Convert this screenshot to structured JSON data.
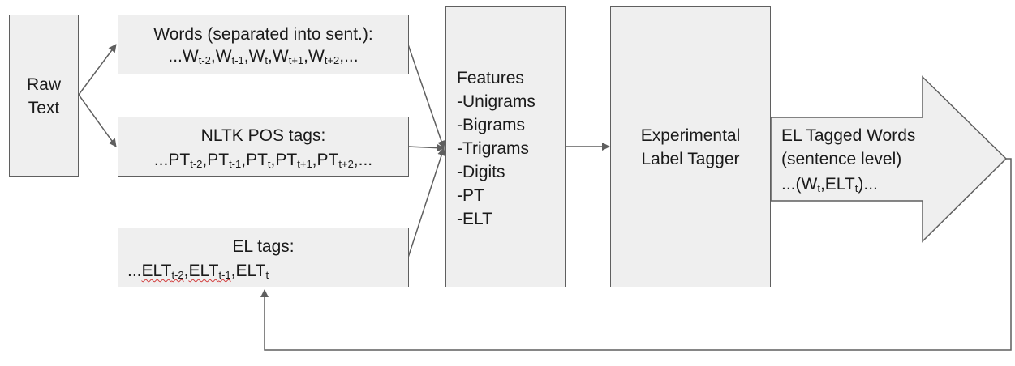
{
  "raw_text": [
    "Raw",
    "Text"
  ],
  "words": {
    "title": "Words (separated into sent.):",
    "prefix": "...",
    "items": [
      {
        "base": "W",
        "sub": "t-2"
      },
      {
        "base": "W",
        "sub": "t-1"
      },
      {
        "base": "W",
        "sub": "t"
      },
      {
        "base": "W",
        "sub": "t+1"
      },
      {
        "base": "W",
        "sub": "t+2"
      }
    ],
    "suffix": ",..."
  },
  "pos_tags": {
    "title": "NLTK POS tags:",
    "prefix": "...",
    "items": [
      {
        "base": "PT",
        "sub": "t-2"
      },
      {
        "base": "PT",
        "sub": "t-1"
      },
      {
        "base": "PT",
        "sub": "t"
      },
      {
        "base": "PT",
        "sub": "t+1"
      },
      {
        "base": "PT",
        "sub": "t+2"
      }
    ],
    "suffix": ",..."
  },
  "el_tags": {
    "title": "EL tags:",
    "prefix": "...",
    "items": [
      {
        "base": "ELT",
        "sub": "t-2"
      },
      {
        "base": "ELT",
        "sub": "t-1"
      },
      {
        "base": "ELT",
        "sub": "t"
      }
    ],
    "suffix": ""
  },
  "features": [
    "Features",
    "-Unigrams",
    "-Bigrams",
    "-Trigrams",
    "-Digits",
    "-PT",
    "-ELT"
  ],
  "tagger": [
    "Experimental",
    "Label Tagger"
  ],
  "output": {
    "lines": [
      "EL Tagged Words",
      "(sentence level)"
    ],
    "seq_prefix": "...(",
    "seq_items": [
      {
        "base": "W",
        "sub": "t"
      },
      {
        "base": "ELT",
        "sub": "t"
      }
    ],
    "seq_suffix": ")..."
  },
  "colors": {
    "box_fill": "#efefef",
    "stroke": "#5f5f5f",
    "squiggle": "#d23c3c"
  }
}
